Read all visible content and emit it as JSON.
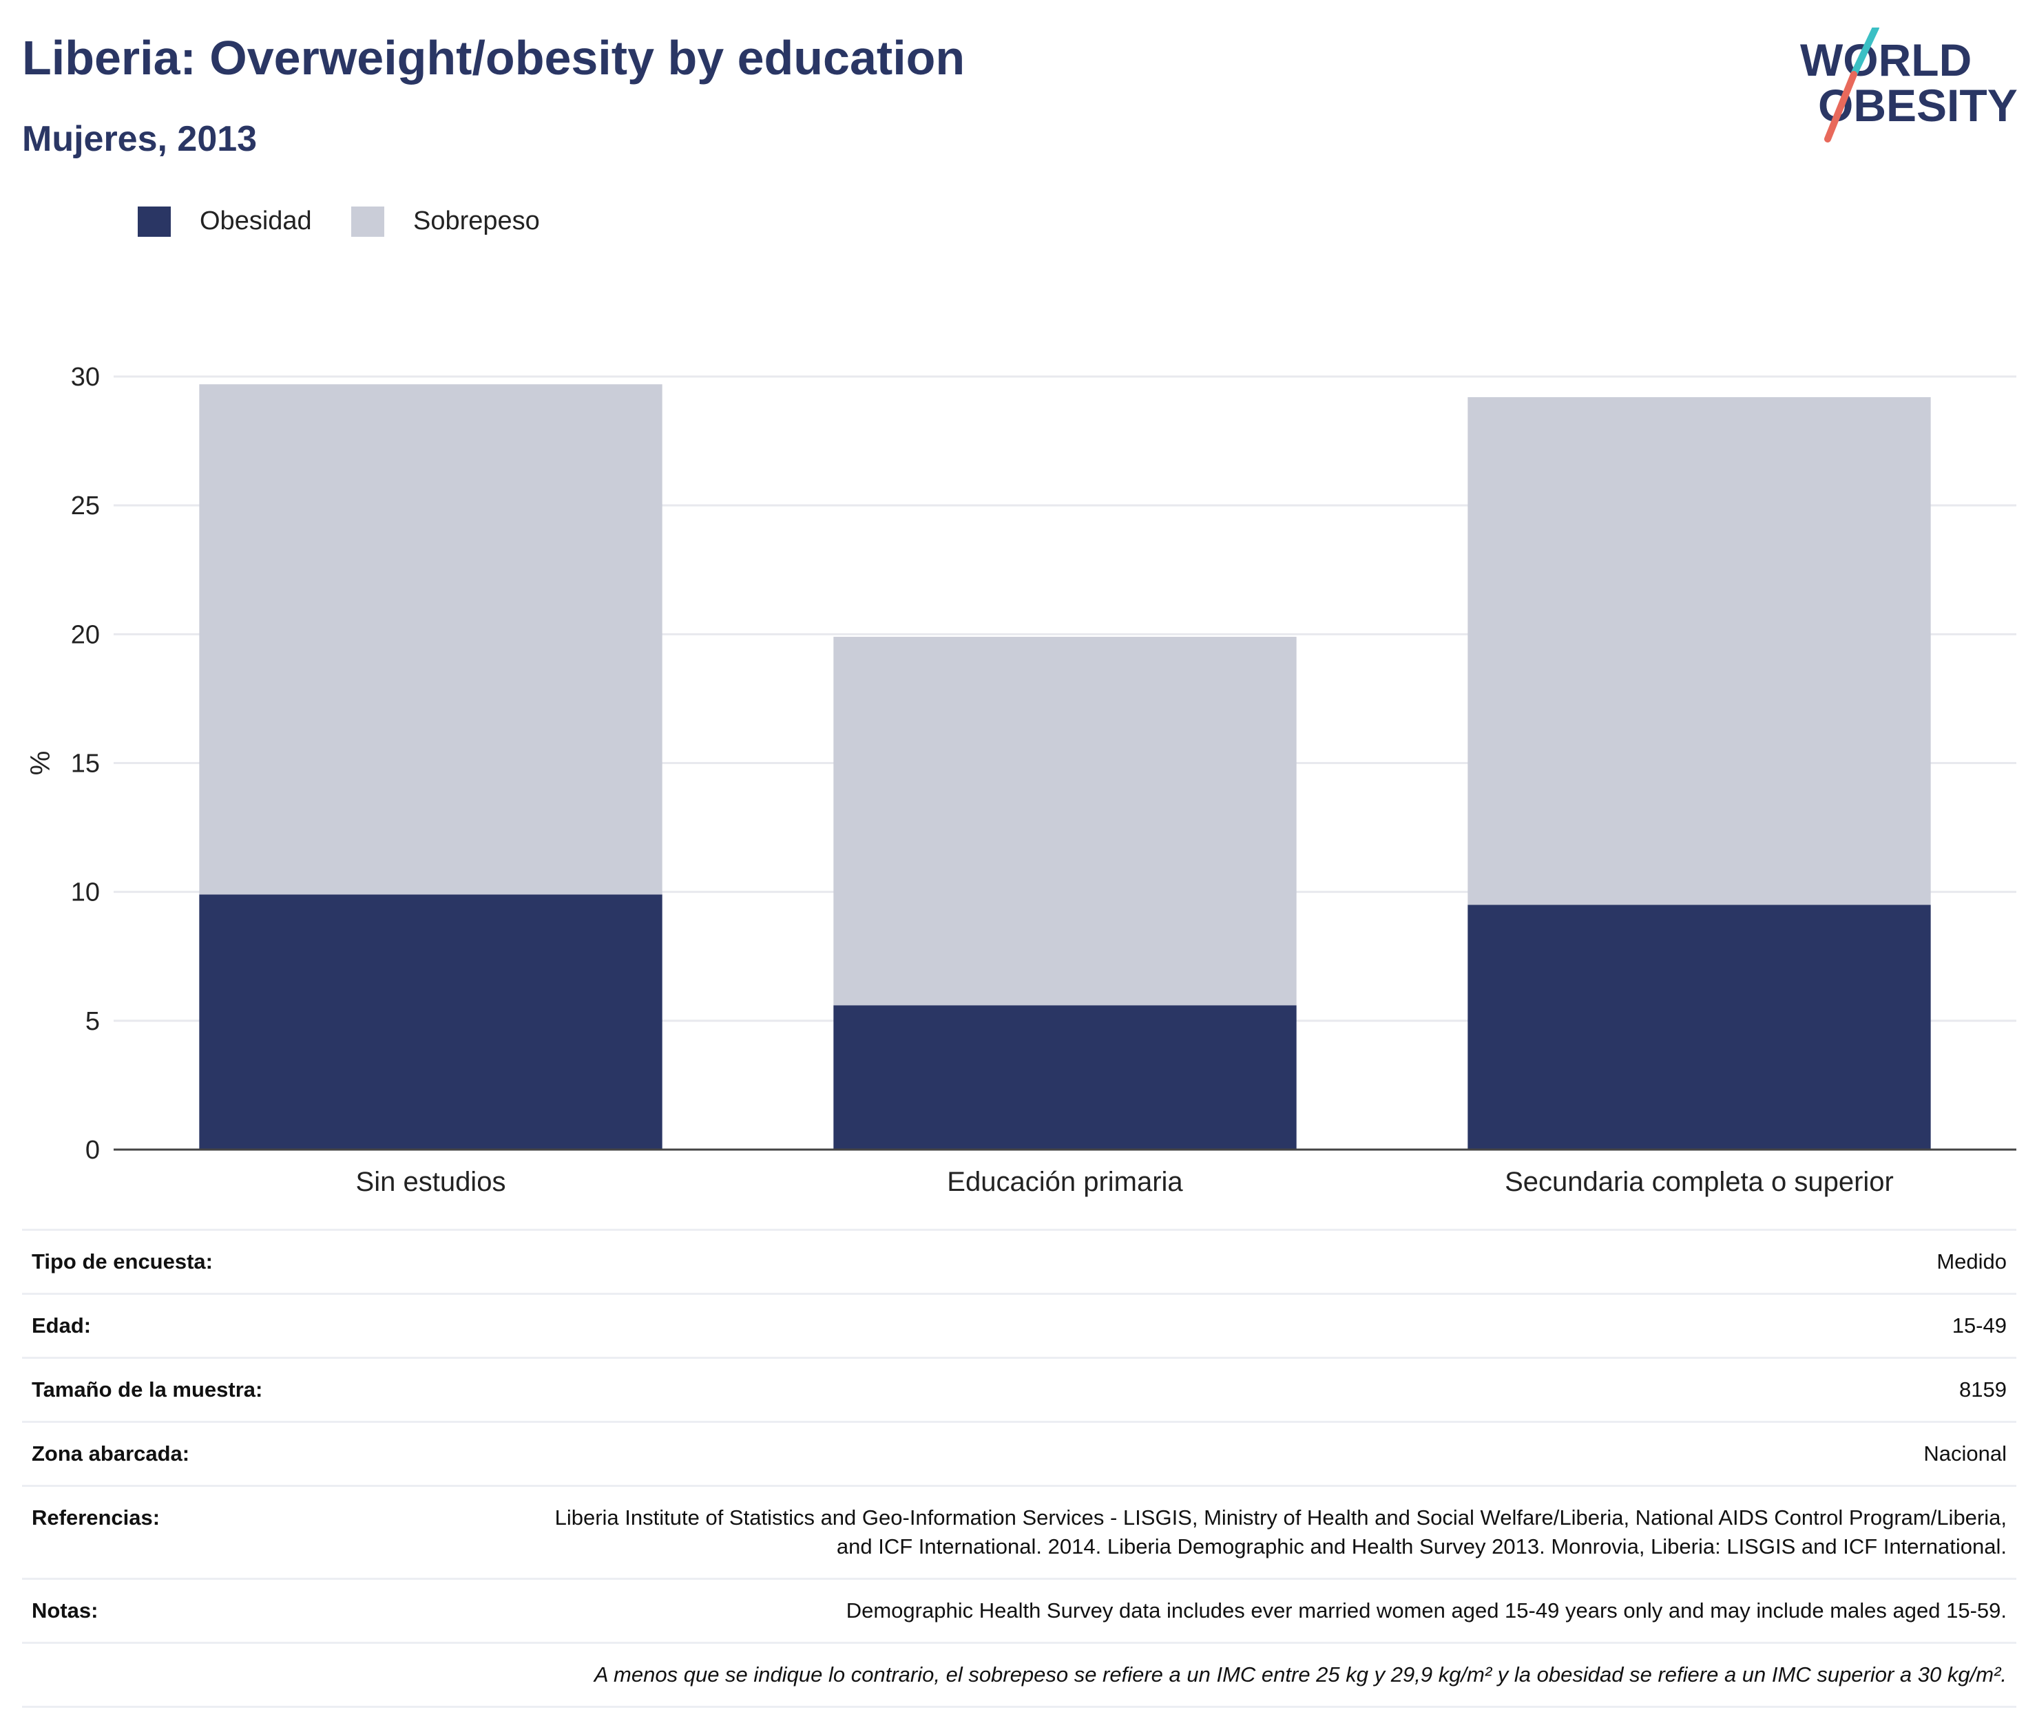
{
  "header": {
    "title": "Liberia: Overweight/obesity by education",
    "subtitle": "Mujeres, 2013"
  },
  "logo": {
    "line1": "WORLD",
    "line2": "OBESITY",
    "colors": {
      "text": "#2a3664",
      "slash_top": "#3bbfc4",
      "slash_bottom": "#e8695b"
    }
  },
  "legend": [
    {
      "label": "Obesidad",
      "color": "#2a3664"
    },
    {
      "label": "Sobrepeso",
      "color": "#cacdd8"
    }
  ],
  "chart_data": {
    "type": "bar",
    "stacked": true,
    "categories": [
      "Sin estudios",
      "Educación primaria",
      "Secundaria completa o superior"
    ],
    "series": [
      {
        "name": "Obesidad",
        "values": [
          9.9,
          5.6,
          9.5
        ],
        "color": "#2a3664"
      },
      {
        "name": "Sobrepeso",
        "values": [
          19.8,
          14.3,
          19.7
        ],
        "color": "#cacdd8"
      }
    ],
    "ylabel": "%",
    "ylim": [
      0,
      30
    ],
    "yticks": [
      0,
      5,
      10,
      15,
      20,
      25,
      30
    ],
    "grid": true,
    "legend_position": "top-left"
  },
  "info": {
    "rows": [
      {
        "label": "Tipo de encuesta:",
        "value": "Medido"
      },
      {
        "label": "Edad:",
        "value": "15-49"
      },
      {
        "label": "Tamaño de la muestra:",
        "value": "8159"
      },
      {
        "label": "Zona abarcada:",
        "value": "Nacional"
      },
      {
        "label": "Referencias:",
        "value": "Liberia Institute of Statistics and Geo-Information Services - LISGIS, Ministry of Health and Social Welfare/Liberia, National AIDS Control Program/Liberia, and ICF International. 2014. Liberia Demographic and Health Survey 2013. Monrovia, Liberia: LISGIS and ICF International."
      },
      {
        "label": "Notas:",
        "value": "Demographic Health Survey data includes ever married women aged 15-49 years only and may include males aged 15-59."
      }
    ],
    "footnote": "A menos que se indique lo contrario, el sobrepeso se refiere a un IMC entre 25 kg y 29,9 kg/m² y la obesidad se refiere a un IMC superior a 30 kg/m²."
  }
}
